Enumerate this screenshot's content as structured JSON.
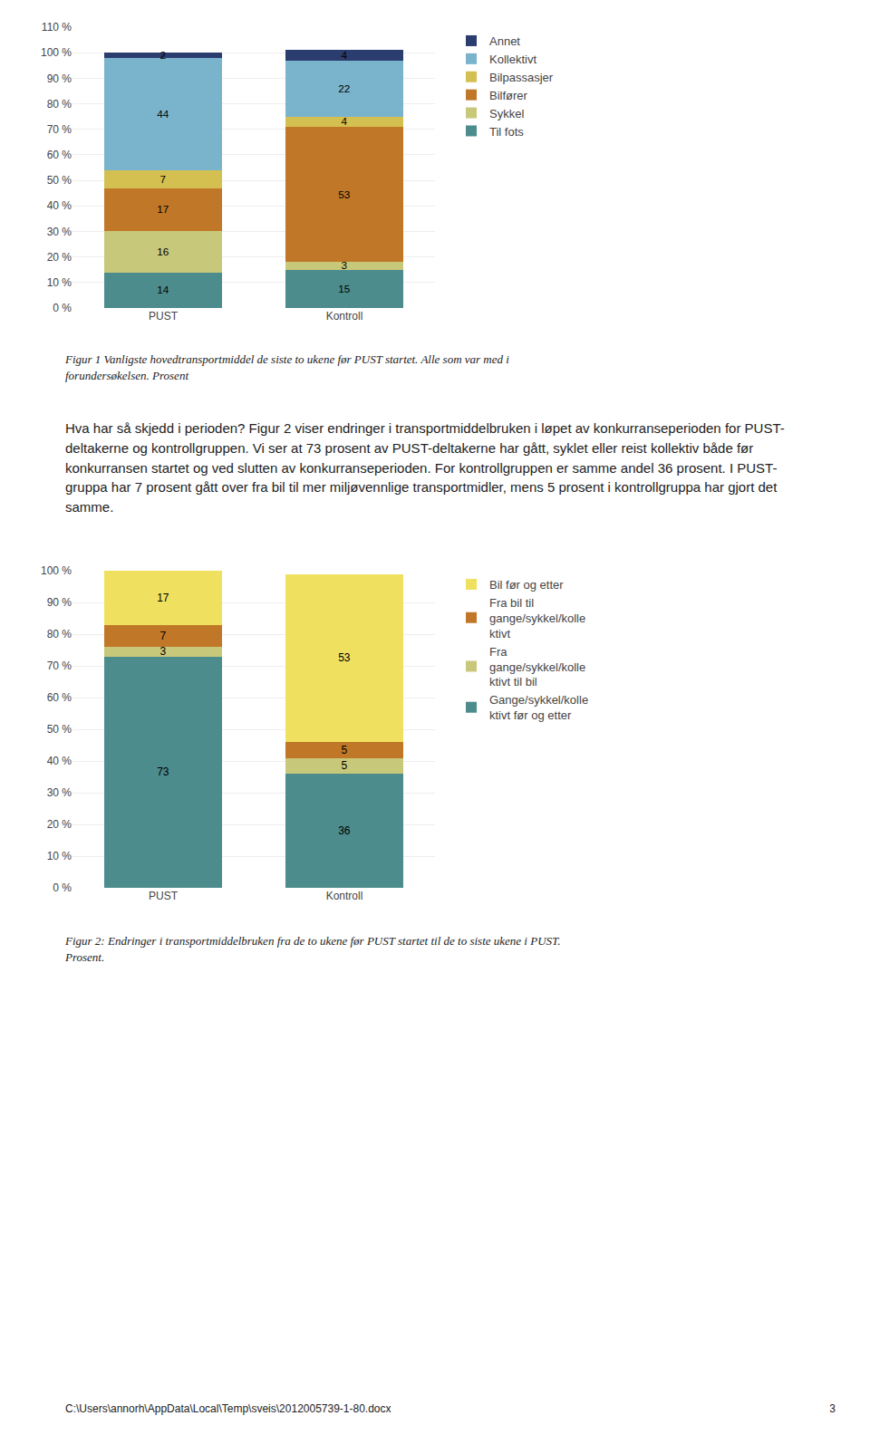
{
  "chart_data": [
    {
      "type": "bar",
      "stacked": true,
      "data_labels": true,
      "grid": true,
      "legend": "right",
      "categories": [
        "PUST",
        "Kontroll"
      ],
      "series": [
        {
          "name": "Til fots",
          "color": "#4d8c8c",
          "values": [
            14,
            15
          ]
        },
        {
          "name": "Sykkel",
          "color": "#c8c87a",
          "values": [
            16,
            3
          ]
        },
        {
          "name": "Bilfører",
          "color": "#c07828",
          "values": [
            17,
            53
          ]
        },
        {
          "name": "Bilpassasjer",
          "color": "#d4c050",
          "values": [
            7,
            4
          ]
        },
        {
          "name": "Kollektivt",
          "color": "#7ab4cc",
          "values": [
            44,
            22
          ]
        },
        {
          "name": "Annet",
          "color": "#2b3c6e",
          "values": [
            2,
            4
          ]
        }
      ],
      "ylim": [
        0,
        110
      ],
      "yticks": [
        {
          "value": 0,
          "label": "0 %"
        },
        {
          "value": 10,
          "label": "10 %"
        },
        {
          "value": 20,
          "label": "20 %"
        },
        {
          "value": 30,
          "label": "30 %"
        },
        {
          "value": 40,
          "label": "40 %"
        },
        {
          "value": 50,
          "label": "50 %"
        },
        {
          "value": 60,
          "label": "60 %"
        },
        {
          "value": 70,
          "label": "70 %"
        },
        {
          "value": 80,
          "label": "80 %"
        },
        {
          "value": 90,
          "label": "90 %"
        },
        {
          "value": 100,
          "label": "100 %"
        },
        {
          "value": 110,
          "label": "110 %"
        }
      ],
      "caption": "Figur 1 Vanligste hovedtransportmiddel de siste to ukene før PUST startet. Alle som var med i\nforundersøkelsen. Prosent"
    },
    {
      "type": "bar",
      "stacked": true,
      "data_labels": true,
      "grid": true,
      "legend": "right",
      "categories": [
        "PUST",
        "Kontroll"
      ],
      "series": [
        {
          "name": "Gange/sykkel/kolle\nktivt før og etter",
          "color": "#4d8c8c",
          "values": [
            73,
            36
          ]
        },
        {
          "name": "Fra\ngange/sykkel/kolle\nktivt til bil",
          "color": "#c8c87a",
          "values": [
            3,
            5
          ]
        },
        {
          "name": "Fra bil til\ngange/sykkel/kolle\nktivt",
          "color": "#c07828",
          "values": [
            7,
            5
          ]
        },
        {
          "name": "Bil før og etter",
          "color": "#f0e060",
          "values": [
            17,
            53
          ]
        }
      ],
      "ylim": [
        0,
        100
      ],
      "yticks": [
        {
          "value": 0,
          "label": "0 %"
        },
        {
          "value": 10,
          "label": "10 %"
        },
        {
          "value": 20,
          "label": "20 %"
        },
        {
          "value": 30,
          "label": "30 %"
        },
        {
          "value": 40,
          "label": "40 %"
        },
        {
          "value": 50,
          "label": "50 %"
        },
        {
          "value": 60,
          "label": "60 %"
        },
        {
          "value": 70,
          "label": "70 %"
        },
        {
          "value": 80,
          "label": "80 %"
        },
        {
          "value": 90,
          "label": "90 %"
        },
        {
          "value": 100,
          "label": "100 %"
        }
      ],
      "caption": "Figur 2: Endringer i transportmiddelbruken fra de to ukene før PUST startet til de to siste ukene i PUST.\nProsent."
    }
  ],
  "text_body": "Hva har så skjedd i perioden? Figur 2 viser endringer i transportmiddelbruken i løpet av konkurranseperioden for PUST-deltakerne og kontrollgruppen. Vi ser at 73 prosent av PUST-deltakerne har gått, syklet eller reist kollektiv både før konkurransen startet og ved slutten av konkurranseperioden. For kontrollgruppen er samme andel 36 prosent. I PUST-gruppa har 7 prosent gått over fra bil til mer miljøvennlige transportmidler, mens 5 prosent i kontrollgruppa har gjort det samme.",
  "footer_left": "C:\\Users\\annorh\\AppData\\Local\\Temp\\sveis\\2012005739-1-80.docx",
  "footer_right": "3"
}
